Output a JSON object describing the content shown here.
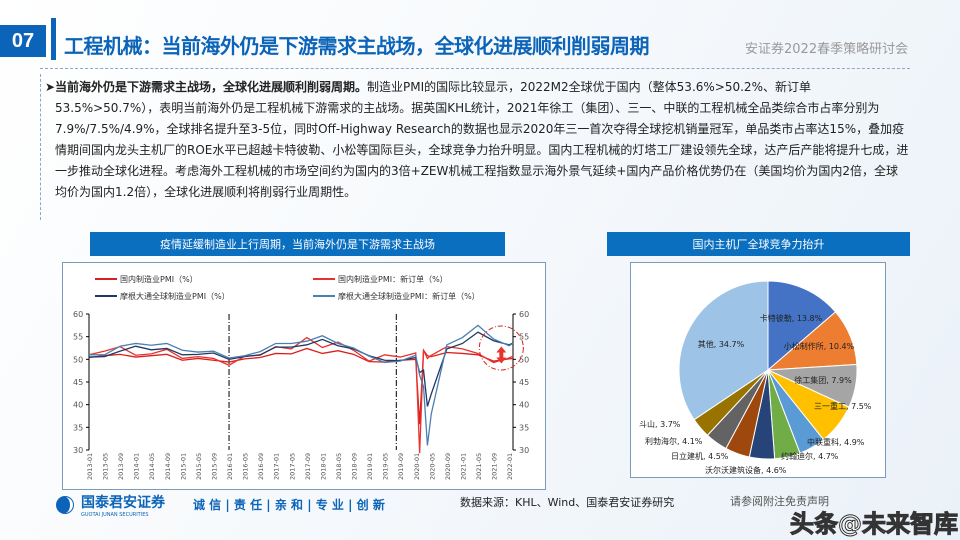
{
  "header": {
    "number": "07",
    "title": "工程机械：当前海外仍是下游需求主战场，全球化进展顺利削弱周期",
    "subtitle": "安证券2022春季策略研讨会"
  },
  "summary": {
    "bullet": "➤",
    "bold": "当前海外仍是下游需求主战场，全球化进展顺利削弱周期。",
    "text": "制造业PMI的国际比较显示，2022M2全球优于国内（整体53.6%>50.2%、新订单53.5%>50.7%），表明当前海外仍是工程机械下游需求的主战场。据英国KHL统计，2021年徐工（集团）、三一、中联的工程机械全品类综合市占率分别为7.9%/7.5%/4.9%，全球排名提升至3-5位，同时Off-Highway Research的数据也显示2020年三一首次夺得全球挖机销量冠军，单品类市占率达15%，叠加疫情期间国内龙头主机厂的ROE水平已超越卡特彼勒、小松等国际巨头，全球竞争力抬升明显。国内工程机械的灯塔工厂建设领先全球，达产后产能将提升七成，进一步推动全球化进程。考虑海外工程机械的市场空间约为国内的3倍+ZEW机械工程指数显示海外景气延续+国内产品价格优势仍在（美国均价为国内2倍，全球均价为国内1.2倍），全球化进展顺利将削弱行业周期性。"
  },
  "left_panel": {
    "header": "疫情延缓制造业上行周期，当前海外仍是下游需求主战场"
  },
  "right_panel": {
    "header": "国内主机厂全球竞争力抬升"
  },
  "chart_data": [
    {
      "type": "line",
      "ylim": [
        30,
        60
      ],
      "yticks": [
        30,
        35,
        40,
        45,
        50,
        55,
        60
      ],
      "xticklabels": [
        "2013-01",
        "2013-05",
        "2013-09",
        "2014-01",
        "2014-05",
        "2014-09",
        "2015-01",
        "2015-05",
        "2015-09",
        "2016-01",
        "2016-05",
        "2016-09",
        "2017-01",
        "2017-05",
        "2017-09",
        "2018-01",
        "2018-05",
        "2018-09",
        "2019-01",
        "2019-05",
        "2019-09",
        "2020-01",
        "2020-05",
        "2020-09",
        "2021-01",
        "2021-05",
        "2021-09",
        "2022-01"
      ],
      "x": [
        "2013-01",
        "2013-05",
        "2013-09",
        "2014-01",
        "2014-05",
        "2014-09",
        "2015-01",
        "2015-05",
        "2015-09",
        "2016-01",
        "2016-05",
        "2016-09",
        "2017-01",
        "2017-05",
        "2017-09",
        "2018-01",
        "2018-05",
        "2018-09",
        "2019-01",
        "2019-05",
        "2019-09",
        "2020-01",
        "2020-02",
        "2020-03",
        "2020-04",
        "2020-05",
        "2020-09",
        "2021-01",
        "2021-05",
        "2021-09",
        "2022-01",
        "2022-02"
      ],
      "vlines": [
        "2016-01",
        "2019-08"
      ],
      "series": [
        {
          "name": "国内制造业PMI（%）",
          "color": "#d9201c",
          "values": [
            50.4,
            50.8,
            51.1,
            50.5,
            50.8,
            51.1,
            49.8,
            50.2,
            49.8,
            49.4,
            50.1,
            50.4,
            51.3,
            51.2,
            52.4,
            51.3,
            51.9,
            51.1,
            49.5,
            49.4,
            49.8,
            50.0,
            35.7,
            52.0,
            50.8,
            50.6,
            51.5,
            51.3,
            51.0,
            49.6,
            50.1,
            50.2
          ]
        },
        {
          "name": "国内制造业PMI：新订单（%）",
          "color": "#e8322e",
          "values": [
            51.0,
            51.8,
            52.8,
            50.9,
            51.2,
            52.2,
            50.2,
            50.6,
            50.2,
            48.7,
            50.7,
            50.9,
            52.8,
            52.3,
            54.8,
            52.6,
            53.8,
            52.0,
            49.6,
            51.0,
            50.5,
            51.4,
            29.3,
            52.0,
            50.2,
            50.9,
            52.8,
            52.3,
            51.3,
            49.3,
            50.3,
            50.7
          ]
        },
        {
          "name": "摩根大通全球制造业PMI（%）",
          "color": "#1f3864",
          "values": [
            50.5,
            50.6,
            51.8,
            52.9,
            52.1,
            52.4,
            51.0,
            51.1,
            51.4,
            50.0,
            50.6,
            51.0,
            52.7,
            52.7,
            53.2,
            54.4,
            53.0,
            52.3,
            50.8,
            49.8,
            49.7,
            50.4,
            47.1,
            47.6,
            39.6,
            42.4,
            52.3,
            53.5,
            56.0,
            54.1,
            53.2,
            53.6
          ]
        },
        {
          "name": "摩根大通全球制造业PMI：新订单（%）",
          "color": "#4a7fb0",
          "values": [
            51.0,
            51.0,
            52.9,
            53.5,
            53.1,
            53.5,
            52.0,
            51.6,
            51.8,
            50.3,
            50.8,
            51.7,
            53.5,
            53.5,
            54.0,
            55.2,
            53.5,
            52.5,
            50.7,
            49.3,
            49.6,
            50.9,
            46.5,
            44.0,
            31.0,
            38.0,
            53.2,
            54.8,
            57.5,
            54.5,
            53.0,
            53.5
          ]
        }
      ],
      "legend": "top",
      "annotation": "red dashed circle with double arrow at 2021-09 to 2022-02"
    },
    {
      "type": "pie",
      "start": "12 o'clock clockwise",
      "slices": [
        {
          "label": "卡特彼勒",
          "value": 13.8,
          "text": "13.8%",
          "color": "#4472c4"
        },
        {
          "label": "小松制作所",
          "value": 10.4,
          "text": "10.4%",
          "color": "#ed7d31"
        },
        {
          "label": "徐工集团",
          "value": 7.9,
          "text": "7.9%",
          "color": "#a5a5a5"
        },
        {
          "label": "三一重工",
          "value": 7.5,
          "text": "7.5%",
          "color": "#ffc000"
        },
        {
          "label": "中联重科",
          "value": 4.9,
          "text": "4.9%",
          "color": "#5b9bd5"
        },
        {
          "label": "约翰迪尔",
          "value": 4.7,
          "text": "4.7%",
          "color": "#70ad47"
        },
        {
          "label": "沃尔沃建筑设备",
          "value": 4.6,
          "text": "4.6%",
          "color": "#264478"
        },
        {
          "label": "日立建机",
          "value": 4.5,
          "text": "4.5%",
          "color": "#9e480e"
        },
        {
          "label": "利勃海尔",
          "value": 4.1,
          "text": "4.1%",
          "color": "#636363"
        },
        {
          "label": "斗山",
          "value": 3.7,
          "text": "3.7%",
          "color": "#997300"
        },
        {
          "label": "其他",
          "value": 34.7,
          "text": "34.7%",
          "color": "#9dc3e6"
        }
      ]
    }
  ],
  "footer": {
    "logo": "国泰君安证券",
    "logo_en": "GUOTAI JUNAN SECURITIES",
    "slogan": "诚 信 | 责 任 | 亲 和 | 专 业 | 创 新",
    "source": "数据来源：KHL、Wind、国泰君安证券研究",
    "disclaimer": "请参阅附注免责声明",
    "watermark": "头条@未来智库"
  }
}
